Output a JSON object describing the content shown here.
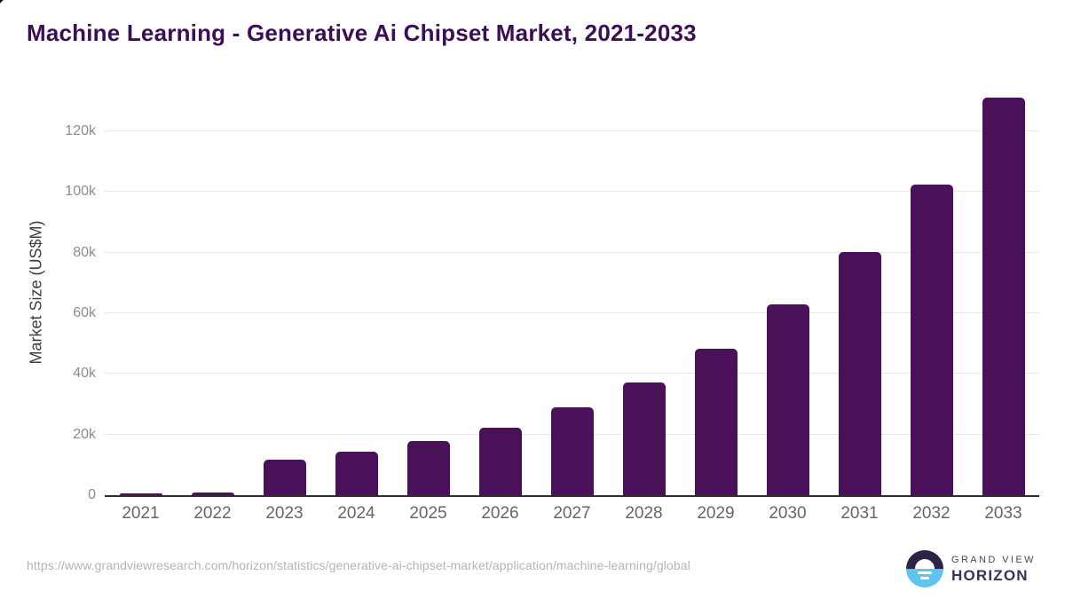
{
  "chart_data": {
    "type": "bar",
    "title": "Machine Learning - Generative Ai Chipset Market, 2021-2033",
    "categories": [
      "2021",
      "2022",
      "2023",
      "2024",
      "2025",
      "2026",
      "2027",
      "2028",
      "2029",
      "2030",
      "2031",
      "2032",
      "2033"
    ],
    "values": [
      500,
      1000,
      11700,
      14300,
      17800,
      22300,
      28900,
      37300,
      48200,
      62900,
      80100,
      102400,
      131200
    ],
    "xlabel": "",
    "ylabel": "Market Size (US$M)",
    "yticks": [
      {
        "label": "0",
        "value": 0
      },
      {
        "label": "20k",
        "value": 20000
      },
      {
        "label": "40k",
        "value": 40000
      },
      {
        "label": "60k",
        "value": 60000
      },
      {
        "label": "80k",
        "value": 80000
      },
      {
        "label": "100k",
        "value": 100000
      },
      {
        "label": "120k",
        "value": 120000
      }
    ],
    "ylim": [
      0,
      134000
    ],
    "grid": true,
    "legend": "none",
    "colors": {
      "bar": "#4a1158",
      "title": "#3b0e55",
      "gridline": "#e7e7e7",
      "axis_line": "#2e2e2e",
      "ytick_text": "#8c8c8c",
      "xtick_text": "#666666"
    }
  },
  "footer": {
    "source_url": "https://www.grandviewresearch.com/horizon/statistics/generative-ai-chipset-market/application/machine-learning/global"
  },
  "logo": {
    "line1": "GRAND VIEW",
    "line2": "HORIZON",
    "icon": "horizon-sunrise-icon",
    "colors": {
      "top": "#2e2247",
      "bottom": "#5fc4ef"
    }
  }
}
